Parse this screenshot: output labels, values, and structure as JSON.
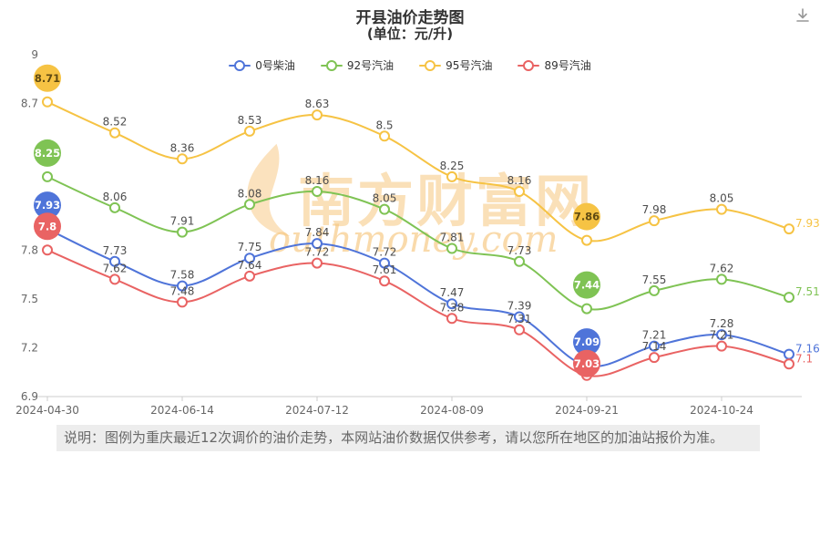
{
  "header": {
    "title": "开县油价走势图",
    "subtitle": "(单位：元/升)"
  },
  "watermark": {
    "text": "南方财富网",
    "subtext": "outhmoney.com"
  },
  "note": {
    "text": "说明：图例为重庆最近12次调价的油价走势，本网站油价数据仅供参考，请以您所在地区的加油站报价为准。"
  },
  "chart_data": {
    "type": "line",
    "title": "开县油价走势图",
    "subtitle": "(单位：元/升)",
    "x_count": 12,
    "x_axis_labels": [
      {
        "index": 0,
        "text": "2024-04-30"
      },
      {
        "index": 2,
        "text": "2024-06-14"
      },
      {
        "index": 4,
        "text": "2024-07-12"
      },
      {
        "index": 6,
        "text": "2024-08-09"
      },
      {
        "index": 8,
        "text": "2024-09-21"
      },
      {
        "index": 10,
        "text": "2024-10-24"
      }
    ],
    "ylim": [
      6.9,
      9
    ],
    "y_axis_labels": [
      {
        "value": 9,
        "text": "9"
      },
      {
        "value": 8.7,
        "text": "8.7"
      },
      {
        "value": 7.8,
        "text": "7.8"
      },
      {
        "value": 7.5,
        "text": "7.5"
      },
      {
        "value": 7.2,
        "text": "7.2"
      },
      {
        "value": 6.9,
        "text": "6.9"
      }
    ],
    "grid": false,
    "legend_position": "top",
    "highlighted_indices": [
      0,
      8
    ],
    "series": [
      {
        "name": "0号柴油",
        "color": "#4f74d9",
        "badge_text_color": "#ffffff",
        "values": [
          7.93,
          7.73,
          7.58,
          7.75,
          7.84,
          7.72,
          7.47,
          7.39,
          7.09,
          7.21,
          7.28,
          7.16
        ]
      },
      {
        "name": "92号汽油",
        "color": "#7fc354",
        "badge_text_color": "#ffffff",
        "values": [
          8.25,
          8.06,
          7.91,
          8.08,
          8.16,
          8.05,
          7.81,
          7.73,
          7.44,
          7.55,
          7.62,
          7.51
        ]
      },
      {
        "name": "95号汽油",
        "color": "#f6c344",
        "badge_text_color": "#5f4a12",
        "values": [
          8.71,
          8.52,
          8.36,
          8.53,
          8.63,
          8.5,
          8.25,
          8.16,
          7.86,
          7.98,
          8.05,
          7.93
        ]
      },
      {
        "name": "89号汽油",
        "color": "#e96363",
        "badge_text_color": "#ffffff",
        "values": [
          7.8,
          7.62,
          7.48,
          7.64,
          7.72,
          7.61,
          7.38,
          7.31,
          7.03,
          7.14,
          7.21,
          7.1
        ]
      }
    ]
  }
}
